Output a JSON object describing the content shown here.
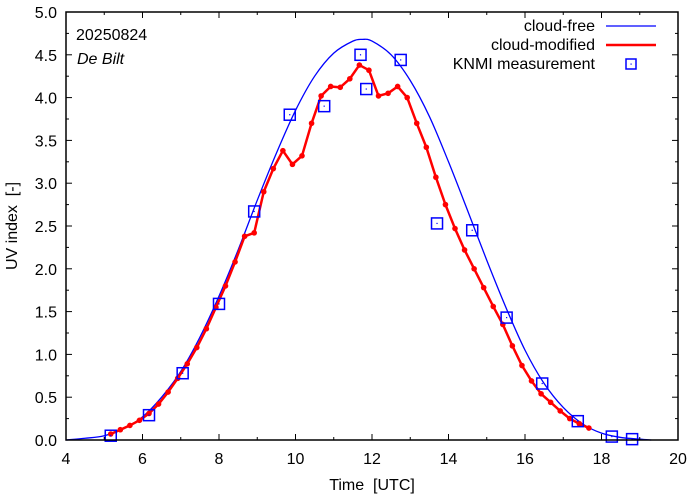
{
  "chart_data": {
    "type": "line",
    "title": "",
    "xlabel": "Time  [UTC]",
    "ylabel": "UV index  [-]",
    "xlim": [
      4,
      20
    ],
    "ylim": [
      0,
      5.0
    ],
    "grid": false,
    "legend_position": "top-right",
    "annotations": {
      "date": "20250824",
      "location": "De Bilt"
    },
    "x_ticks": [
      4,
      6,
      8,
      10,
      12,
      14,
      16,
      18,
      20
    ],
    "x_tick_labels": [
      "4",
      "6",
      "8",
      "10",
      "12",
      "14",
      "16",
      "18",
      "20"
    ],
    "y_ticks": [
      0,
      0.5,
      1.0,
      1.5,
      2.0,
      2.5,
      3.0,
      3.5,
      4.0,
      4.5,
      5.0
    ],
    "y_tick_labels": [
      "0.0",
      "0.5",
      "1.0",
      "1.5",
      "2.0",
      "2.5",
      "3.0",
      "3.5",
      "4.0",
      "4.5",
      "5.0"
    ],
    "series": [
      {
        "name": "cloud-free",
        "style": "line",
        "color": "#0000ff",
        "x": [
          4.0,
          4.5,
          5.0,
          5.5,
          6.0,
          6.5,
          7.0,
          7.5,
          8.0,
          8.5,
          9.0,
          9.5,
          10.0,
          10.5,
          11.0,
          11.5,
          11.75,
          12.0,
          12.5,
          13.0,
          13.5,
          14.0,
          14.5,
          15.0,
          15.5,
          16.0,
          16.5,
          17.0,
          17.5,
          18.0,
          18.5,
          19.0,
          19.3
        ],
        "y": [
          0.0,
          0.02,
          0.05,
          0.13,
          0.27,
          0.5,
          0.8,
          1.2,
          1.68,
          2.22,
          2.8,
          3.35,
          3.85,
          4.25,
          4.52,
          4.66,
          4.68,
          4.66,
          4.5,
          4.2,
          3.78,
          3.25,
          2.68,
          2.1,
          1.55,
          1.05,
          0.66,
          0.38,
          0.19,
          0.08,
          0.03,
          0.01,
          0.0
        ]
      },
      {
        "name": "cloud-modified",
        "style": "line+points",
        "color": "#ff0000",
        "x": [
          5.17,
          5.42,
          5.67,
          5.92,
          6.17,
          6.42,
          6.67,
          6.92,
          7.17,
          7.42,
          7.67,
          7.92,
          8.17,
          8.42,
          8.67,
          8.92,
          9.17,
          9.42,
          9.67,
          9.92,
          10.17,
          10.42,
          10.67,
          10.92,
          11.17,
          11.42,
          11.67,
          11.92,
          12.17,
          12.42,
          12.67,
          12.92,
          13.17,
          13.42,
          13.67,
          13.92,
          14.17,
          14.42,
          14.67,
          14.92,
          15.17,
          15.42,
          15.67,
          15.92,
          16.17,
          16.42,
          16.67,
          16.92,
          17.17,
          17.42,
          17.67
        ],
        "y": [
          0.07,
          0.12,
          0.17,
          0.23,
          0.31,
          0.42,
          0.56,
          0.72,
          0.89,
          1.08,
          1.3,
          1.55,
          1.8,
          2.08,
          2.38,
          2.42,
          2.9,
          3.17,
          3.38,
          3.22,
          3.32,
          3.7,
          4.02,
          4.13,
          4.12,
          4.22,
          4.38,
          4.32,
          4.02,
          4.05,
          4.13,
          4.0,
          3.7,
          3.42,
          3.07,
          2.75,
          2.47,
          2.22,
          2.0,
          1.78,
          1.56,
          1.35,
          1.1,
          0.87,
          0.69,
          0.54,
          0.44,
          0.34,
          0.25,
          0.19,
          0.14
        ]
      },
      {
        "name": "KNMI measurement",
        "style": "points",
        "color": "#0000ff",
        "x": [
          5.17,
          6.17,
          7.05,
          8.0,
          8.92,
          9.85,
          10.75,
          11.7,
          11.85,
          12.75,
          13.7,
          14.62,
          15.52,
          16.45,
          17.38,
          18.27,
          18.8
        ],
        "y": [
          0.05,
          0.29,
          0.78,
          1.59,
          2.67,
          3.8,
          3.9,
          4.5,
          4.1,
          4.44,
          2.53,
          2.45,
          1.43,
          0.66,
          0.22,
          0.04,
          0.01
        ]
      }
    ]
  }
}
